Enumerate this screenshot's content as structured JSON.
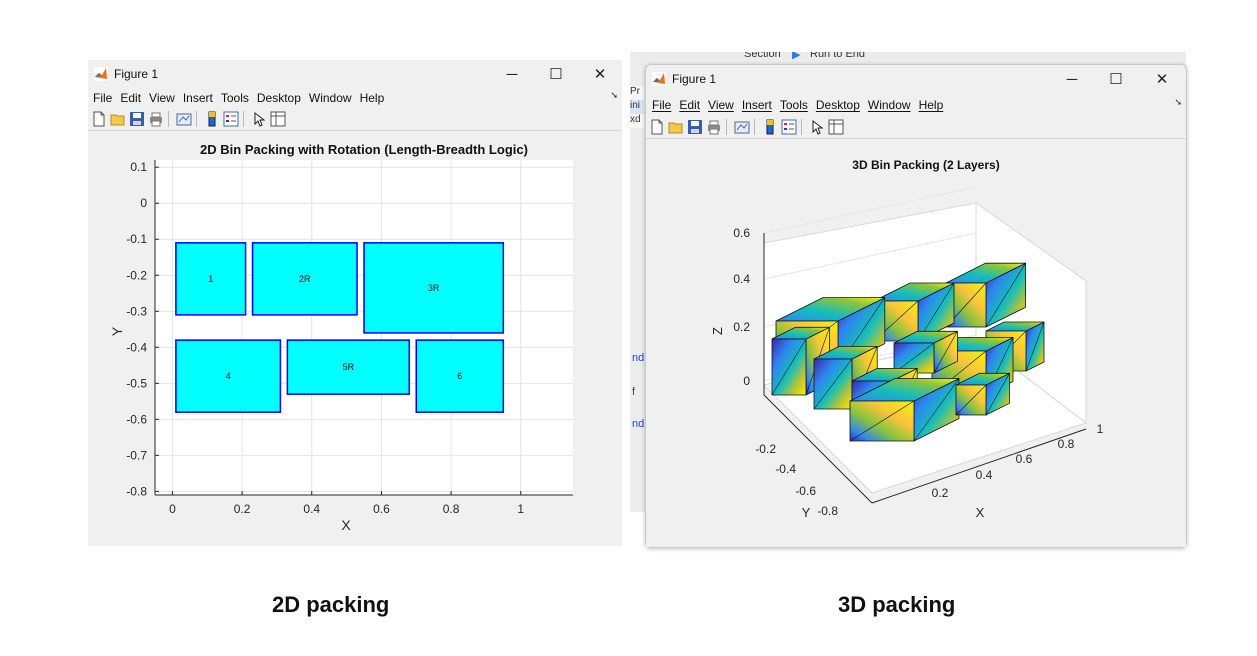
{
  "left_window": {
    "title": "Figure 1",
    "controls": {
      "minimize": "─",
      "maximize": "☐",
      "close": "✕"
    },
    "menus": [
      "File",
      "Edit",
      "View",
      "Insert",
      "Tools",
      "Desktop",
      "Window",
      "Help"
    ],
    "toolbar_icons": [
      "new-figure-icon",
      "open-file-icon",
      "save-icon",
      "print-icon",
      "link-plot-icon",
      "colorbar-icon",
      "legend-icon",
      "pointer-icon",
      "property-inspector-icon"
    ]
  },
  "right_window": {
    "title": "Figure 1",
    "controls": {
      "minimize": "─",
      "maximize": "☐",
      "close": "✕"
    },
    "menus": [
      "File",
      "Edit",
      "View",
      "Insert",
      "Tools",
      "Desktop",
      "Window",
      "Help"
    ],
    "toolbar_icons": [
      "new-figure-icon",
      "open-file-icon",
      "save-icon",
      "print-icon",
      "link-plot-icon",
      "colorbar-icon",
      "legend-icon",
      "pointer-icon",
      "property-inspector-icon"
    ]
  },
  "ide_background": {
    "toolbar_text": "Section",
    "run_label": "Run to End",
    "side_fragments": [
      "Pr",
      "ini",
      "xd"
    ],
    "code_fragments": [
      "nd",
      "f",
      "nd"
    ]
  },
  "captions": {
    "left": "2D packing",
    "right": "3D packing"
  },
  "chart_data": [
    {
      "type": "rectangles",
      "title": "2D Bin Packing with Rotation (Length-Breadth Logic)",
      "xlabel": "X",
      "ylabel": "Y",
      "xlim": [
        -0.05,
        1.15
      ],
      "ylim": [
        -0.81,
        0.12
      ],
      "xticks": [
        0,
        0.2,
        0.4,
        0.6,
        0.8,
        1
      ],
      "yticks": [
        0.1,
        0,
        -0.1,
        -0.2,
        -0.3,
        -0.4,
        -0.5,
        -0.6,
        -0.7,
        -0.8
      ],
      "grid": true,
      "face_color": "#00ffff",
      "edge_color": "#0000ff",
      "rects": [
        {
          "label": "1",
          "x0": 0.01,
          "x1": 0.21,
          "y0": -0.31,
          "y1": -0.11
        },
        {
          "label": "2R",
          "x0": 0.23,
          "x1": 0.53,
          "y0": -0.31,
          "y1": -0.11
        },
        {
          "label": "3R",
          "x0": 0.55,
          "x1": 0.95,
          "y0": -0.36,
          "y1": -0.11
        },
        {
          "label": "4",
          "x0": 0.01,
          "x1": 0.31,
          "y0": -0.58,
          "y1": -0.38
        },
        {
          "label": "5R",
          "x0": 0.33,
          "x1": 0.68,
          "y0": -0.53,
          "y1": -0.38
        },
        {
          "label": "6",
          "x0": 0.7,
          "x1": 0.95,
          "y0": -0.58,
          "y1": -0.38
        }
      ]
    },
    {
      "type": "3d-boxes",
      "title": "3D Bin Packing (2 Layers)",
      "xlabel": "X",
      "ylabel": "Y",
      "zlabel": "Z",
      "zticks": [
        "0",
        "0.2",
        "0.4",
        "0.6"
      ],
      "xticks": [
        "0.2",
        "0.4",
        "0.6",
        "0.8",
        "1"
      ],
      "yticks": [
        "-0.2",
        "-0.4",
        "-0.6",
        "-0.8"
      ],
      "layers": 2,
      "box_count": 11,
      "colormap": [
        "#3e26a8",
        "#2e86f0",
        "#13bebc",
        "#8cc43c",
        "#f9d03a",
        "#f5f20e"
      ]
    }
  ]
}
